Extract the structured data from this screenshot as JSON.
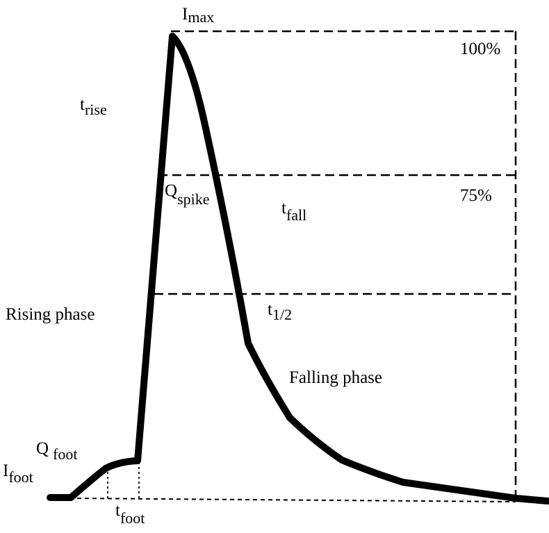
{
  "labels": {
    "i_max": {
      "main": "I",
      "sub": "max"
    },
    "pct_100": "100%",
    "t_rise": {
      "main": "t",
      "sub": "rise"
    },
    "q_spike": {
      "main": "Q",
      "sub": "spike"
    },
    "pct_75": "75%",
    "t_fall": {
      "main": "t",
      "sub": "fall"
    },
    "rising_phase": "Rising phase",
    "t_half": {
      "main": "t",
      "sub": "1/2"
    },
    "falling_phase": "Falling phase",
    "q_foot": {
      "main": "Q",
      "sub": "foot"
    },
    "i_foot": {
      "main": "I",
      "sub": "foot"
    },
    "t_foot": {
      "main": "t",
      "sub": "foot"
    }
  }
}
